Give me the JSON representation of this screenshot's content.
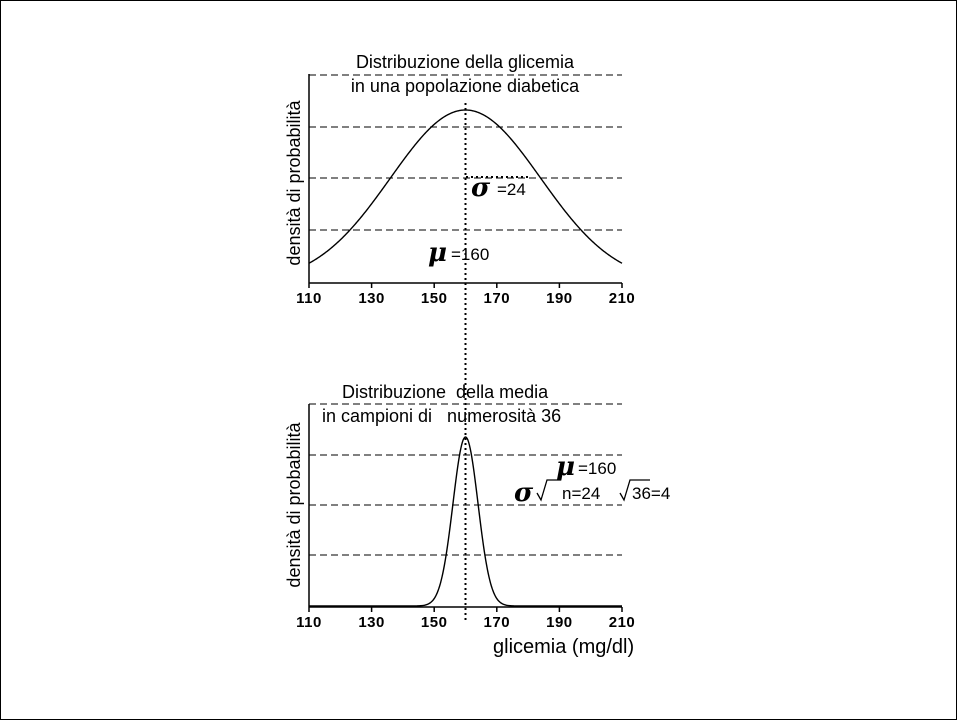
{
  "chart_data": [
    {
      "type": "line",
      "title": [
        "Distribuzione della glicemia",
        "in una popolazione diabetica"
      ],
      "ylabel": "densità di probabilità",
      "xlabel": "",
      "xlim": [
        110,
        210
      ],
      "xticks": [
        "110",
        "130",
        "150",
        "170",
        "190",
        "210"
      ],
      "grid": "horizontal dashed, 4 lines",
      "distribution": {
        "kind": "normal",
        "mean": 160,
        "sd": 24
      },
      "annotations": {
        "sigma_symbol": "σ",
        "sigma_text": "=24",
        "mu_symbol": "μ",
        "mu_text": "=160"
      }
    },
    {
      "type": "line",
      "title": [
        "Distribuzione  della media",
        "in campioni di   numerosità 36"
      ],
      "ylabel": "densità di probabilità",
      "xlabel": "glicemia (mg/dl)",
      "xlim": [
        110,
        210
      ],
      "xticks": [
        "110",
        "130",
        "150",
        "170",
        "190",
        "210"
      ],
      "grid": "horizontal dashed, 3 lines",
      "distribution": {
        "kind": "normal",
        "mean": 160,
        "sd": 4
      },
      "annotations": {
        "mu_symbol": "μ",
        "mu_text": "=160",
        "sigma_symbol": "σ",
        "sigma_formula_a": "n=24",
        "sigma_formula_b": "36=4"
      }
    }
  ],
  "mean_line": 160
}
